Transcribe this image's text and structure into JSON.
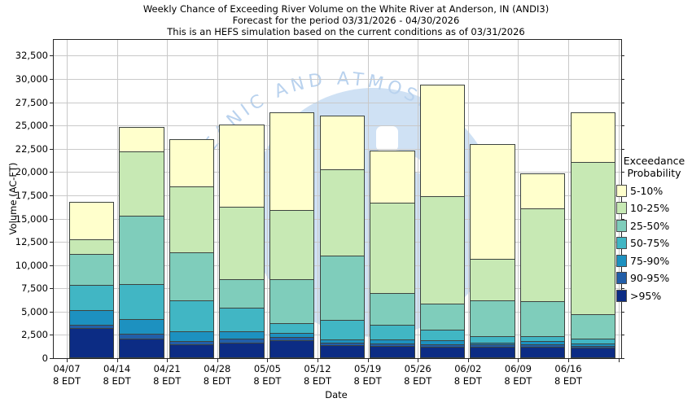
{
  "chart_data": {
    "type": "bar",
    "subtype": "stacked-bar",
    "title_lines": [
      "Weekly Chance of Exceeding River Volume on the White River at Anderson, IN (ANDI3)",
      "Forecast for the period 03/31/2026 - 04/30/2026",
      "This is an HEFS simulation based on the current conditions as of 03/31/2026"
    ],
    "xlabel": "Date",
    "ylabel": "Volume (AC-FT)",
    "units": "AC-FT",
    "grid": true,
    "ylim": [
      0,
      34200
    ],
    "y_ticks": [
      0,
      2500,
      5000,
      7500,
      10000,
      12500,
      15000,
      17500,
      20000,
      22500,
      25000,
      27500,
      30000,
      32500
    ],
    "categories": [
      "04/07",
      "04/14",
      "04/21",
      "04/28",
      "05/05",
      "05/12",
      "05/19",
      "05/26",
      "06/02",
      "06/09",
      "06/16"
    ],
    "x_tick_sublabel": "8 EDT",
    "bar_totals": [
      16800,
      24800,
      23500,
      25100,
      26400,
      26100,
      22300,
      29400,
      23000,
      19900,
      26400
    ],
    "series": [
      {
        "name": ">95%",
        "color": "#0c2c84",
        "values": [
          3200,
          2100,
          1500,
          1700,
          1900,
          1400,
          1300,
          1200,
          1200,
          1200,
          1100
        ]
      },
      {
        "name": "90-95%",
        "color": "#225ea8",
        "values": [
          400,
          500,
          300,
          400,
          400,
          300,
          300,
          300,
          300,
          300,
          200
        ]
      },
      {
        "name": "75-90%",
        "color": "#1d91c0",
        "values": [
          1600,
          1600,
          1100,
          800,
          400,
          300,
          400,
          400,
          200,
          300,
          300
        ]
      },
      {
        "name": "50-75%",
        "color": "#41b6c4",
        "values": [
          2700,
          3800,
          3300,
          2500,
          1100,
          2100,
          1600,
          1200,
          700,
          600,
          500
        ]
      },
      {
        "name": "25-50%",
        "color": "#7fcdbb",
        "values": [
          3300,
          7300,
          5200,
          3100,
          4700,
          6900,
          3400,
          2800,
          3800,
          3700,
          2600
        ]
      },
      {
        "name": "10-25%",
        "color": "#c7e9b4",
        "values": [
          1600,
          6900,
          7100,
          7800,
          7400,
          9300,
          9700,
          11500,
          4500,
          10000,
          16400
        ]
      },
      {
        "name": "5-10%",
        "color": "#ffffcc",
        "values": [
          4000,
          2600,
          5000,
          8800,
          10500,
          5800,
          5600,
          12000,
          12300,
          3800,
          5300
        ]
      }
    ],
    "legend": {
      "position": "right",
      "title_lines": [
        "Exceedance",
        "Probability"
      ],
      "entries": [
        {
          "label": "5-10%",
          "color": "#ffffcc"
        },
        {
          "label": "10-25%",
          "color": "#c7e9b4"
        },
        {
          "label": "25-50%",
          "color": "#7fcdbb"
        },
        {
          "label": "50-75%",
          "color": "#41b6c4"
        },
        {
          "label": "75-90%",
          "color": "#1d91c0"
        },
        {
          "label": "90-95%",
          "color": "#225ea8"
        },
        {
          "label": ">95%",
          "color": "#0c2c84"
        }
      ]
    }
  },
  "watermark": {
    "arc_text": "CEANIC AND ATMOSPHE",
    "circle_color": "#cfe1f4",
    "text_color": "#b9d2ee",
    "shape_color": "#ffffff"
  }
}
